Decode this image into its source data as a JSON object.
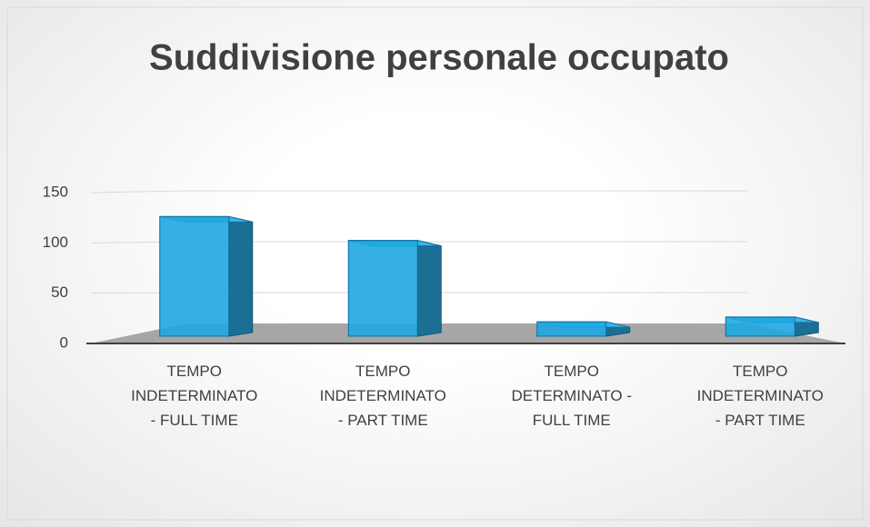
{
  "chart_data": {
    "type": "bar3d",
    "title": "Suddivisione personale occupato",
    "categories": [
      "TEMPO INDETERMINATO - FULL TIME",
      "TEMPO INDETERMINATO - PART TIME",
      "TEMPO DETERMINATO - FULL TIME",
      "TEMPO INDETERMINATO - PART TIME"
    ],
    "values": [
      125,
      100,
      15,
      20
    ],
    "color": "#1ea7e1",
    "ylim": [
      0,
      150
    ],
    "yticks": [
      0,
      50,
      100,
      150
    ],
    "grid": true
  }
}
